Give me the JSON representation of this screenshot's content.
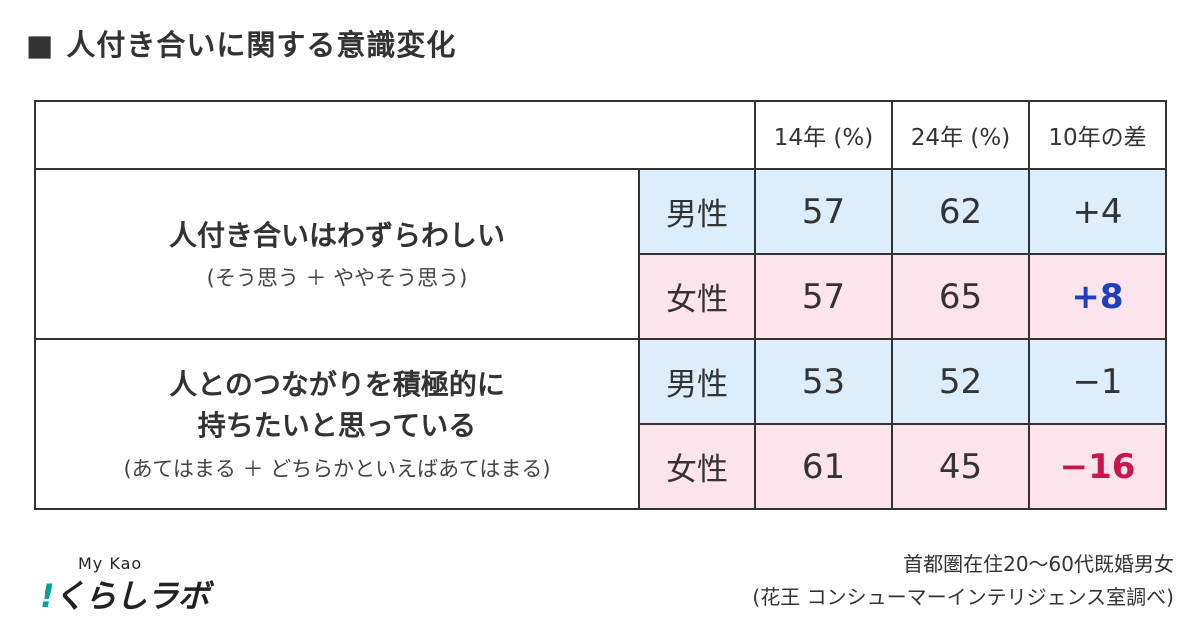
{
  "title": {
    "marker": "■",
    "text": "人付き合いに関する意識変化"
  },
  "chart_data": {
    "type": "table",
    "columns": [
      "14年 (%)",
      "24年 (%)",
      "10年の差"
    ],
    "rows": [
      {
        "label": "人付き合いはわずらわしい",
        "label_lines": [
          "人付き合いはわずらわしい"
        ],
        "sublabel": "(そう思う ＋ ややそう思う)",
        "groups": [
          {
            "gender": "男性",
            "y14": 57,
            "y24": 62,
            "diff": "+4",
            "diff_highlight": false
          },
          {
            "gender": "女性",
            "y14": 57,
            "y24": 65,
            "diff": "+8",
            "diff_highlight": true
          }
        ]
      },
      {
        "label": "人とのつながりを積極的に持ちたいと思っている",
        "label_lines": [
          "人とのつながりを積極的に",
          "持ちたいと思っている"
        ],
        "sublabel": "(あてはまる ＋ どちらかといえばあてはまる)",
        "groups": [
          {
            "gender": "男性",
            "y14": 53,
            "y24": 52,
            "diff": "−1",
            "diff_highlight": false
          },
          {
            "gender": "女性",
            "y14": 61,
            "y24": 45,
            "diff": "−16",
            "diff_highlight": true
          }
        ]
      }
    ]
  },
  "colors": {
    "male_bg": "#dceefb",
    "female_bg": "#fde4ec",
    "positive_highlight": "#1f3fbf",
    "negative_highlight": "#c8174f"
  },
  "logo": {
    "top": "My Kao",
    "mark": "!",
    "bottom": "くらしラボ"
  },
  "source": {
    "line1": "首都圏在住20〜60代既婚男女",
    "line2": "(花王 コンシューマーインテリジェンス室調べ)"
  }
}
